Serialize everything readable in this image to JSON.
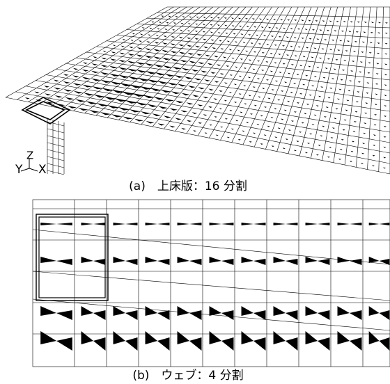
{
  "figure": {
    "panel_a": {
      "caption": "(a)　上床版：16 分割",
      "axis_labels": {
        "y": "Y",
        "z": "Z",
        "x": "X"
      }
    },
    "panel_b": {
      "caption": "(b)　ウェブ：4 分割"
    }
  }
}
